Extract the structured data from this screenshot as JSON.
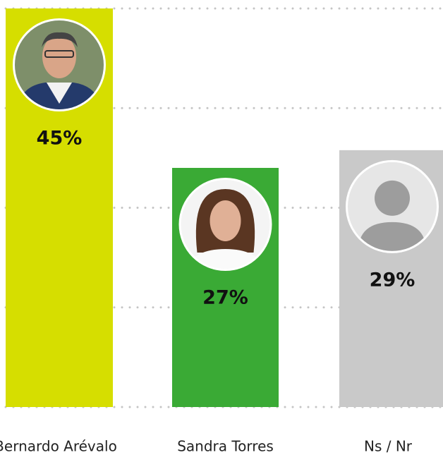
{
  "chart_data": {
    "type": "bar",
    "categories": [
      "Bernardo Arévalo",
      "Sandra Torres",
      "Ns / Nr"
    ],
    "values": [
      45,
      27,
      29
    ],
    "value_labels": [
      "45%",
      "27%",
      "29%"
    ],
    "colors": [
      "#d6de00",
      "#3aaa35",
      "#c9c9c9"
    ],
    "ylim": [
      0,
      45
    ],
    "yticks": [
      0,
      11.25,
      22.5,
      33.75,
      45
    ],
    "grid": true
  }
}
